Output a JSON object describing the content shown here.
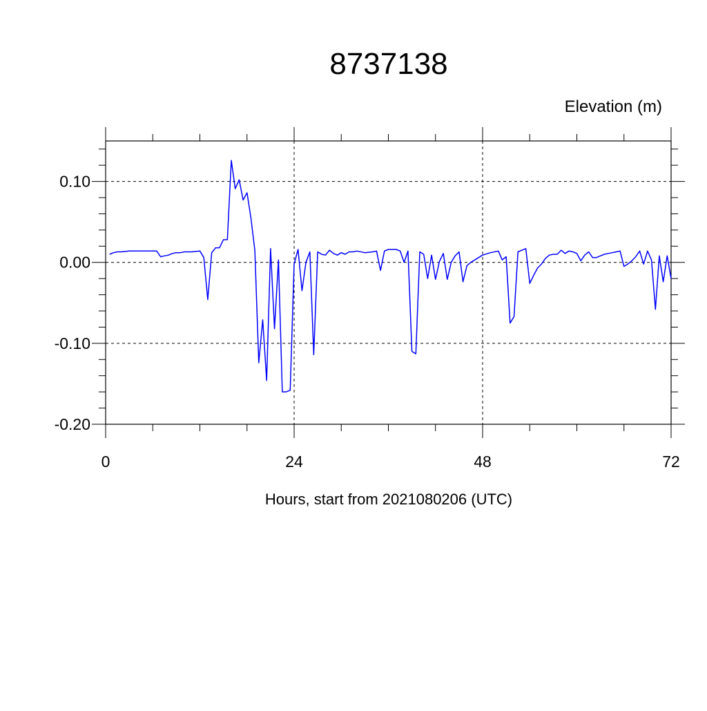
{
  "chart_data": {
    "type": "line",
    "title": "8737138",
    "units_label": "Elevation (m)",
    "xlabel": "Hours, start from 2021080206 (UTC)",
    "ylabel": "",
    "xlim": [
      0,
      72
    ],
    "ylim": [
      -0.2,
      0.15
    ],
    "x_ticks": [
      0,
      24,
      48,
      72
    ],
    "x_tick_labels": [
      "0",
      "24",
      "48",
      "72"
    ],
    "y_ticks": [
      -0.2,
      -0.1,
      0.0,
      0.1
    ],
    "y_tick_labels": [
      "-0.20",
      "-0.10",
      "0.00",
      "0.10"
    ],
    "grid": "dashed at major ticks",
    "series": [
      {
        "color": "#0000ff",
        "x": [
          0.5,
          1.0,
          1.5,
          2.0,
          3.0,
          4.0,
          5.0,
          6.0,
          6.5,
          7.0,
          7.5,
          8.0,
          8.5,
          9.0,
          9.5,
          10.0,
          11.0,
          12.0,
          12.5,
          13.0,
          13.5,
          14.0,
          14.5,
          15.0,
          15.5,
          16.0,
          16.5,
          17.0,
          17.5,
          18.0,
          18.5,
          19.0,
          19.5,
          20.0,
          20.5,
          21.0,
          21.5,
          22.0,
          22.5,
          23.0,
          23.5,
          24.0,
          24.5,
          25.0,
          25.5,
          26.0,
          26.5,
          27.0,
          27.5,
          28.0,
          28.5,
          29.0,
          29.5,
          30.0,
          30.5,
          31.0,
          31.5,
          32.0,
          33.0,
          34.0,
          34.5,
          35.0,
          35.5,
          36.0,
          36.5,
          37.0,
          37.5,
          38.0,
          38.5,
          39.0,
          39.5,
          40.0,
          40.5,
          41.0,
          41.5,
          42.0,
          42.5,
          43.0,
          43.5,
          44.0,
          44.5,
          45.0,
          45.5,
          46.0,
          46.5,
          47.0,
          48.0,
          49.0,
          50.0,
          50.5,
          51.0,
          51.5,
          52.0,
          52.5,
          53.0,
          53.5,
          54.0,
          54.5,
          55.0,
          55.5,
          56.0,
          56.5,
          57.0,
          57.5,
          58.0,
          58.5,
          59.0,
          59.5,
          60.0,
          60.5,
          61.0,
          61.5,
          62.0,
          62.5,
          63.0,
          63.5,
          64.0,
          64.5,
          65.0,
          65.5,
          66.0,
          66.5,
          67.0,
          67.5,
          68.0,
          68.5,
          69.0,
          69.5,
          70.0,
          70.5,
          71.0,
          71.5,
          72.0
        ],
        "y": [
          0.01,
          0.012,
          0.013,
          0.013,
          0.014,
          0.014,
          0.014,
          0.014,
          0.014,
          0.007,
          0.008,
          0.009,
          0.011,
          0.012,
          0.012,
          0.013,
          0.013,
          0.014,
          0.006,
          -0.046,
          0.012,
          0.018,
          0.018,
          0.028,
          0.028,
          0.126,
          0.091,
          0.102,
          0.077,
          0.086,
          0.055,
          0.015,
          -0.124,
          -0.071,
          -0.146,
          0.017,
          -0.082,
          0.003,
          -0.16,
          -0.16,
          -0.158,
          -0.002,
          0.016,
          -0.035,
          0.0,
          0.013,
          -0.114,
          0.013,
          0.01,
          0.009,
          0.015,
          0.011,
          0.009,
          0.012,
          0.01,
          0.013,
          0.013,
          0.014,
          0.012,
          0.013,
          0.014,
          -0.01,
          0.014,
          0.016,
          0.016,
          0.016,
          0.014,
          0.0,
          0.014,
          -0.11,
          -0.113,
          0.013,
          0.01,
          -0.02,
          0.009,
          -0.021,
          0.001,
          0.011,
          -0.021,
          0.0,
          0.008,
          0.013,
          -0.024,
          -0.004,
          0.0,
          0.003,
          0.009,
          0.012,
          0.014,
          0.003,
          0.007,
          -0.075,
          -0.067,
          0.013,
          0.015,
          0.017,
          -0.026,
          -0.016,
          -0.007,
          -0.002,
          0.005,
          0.009,
          0.01,
          0.01,
          0.015,
          0.011,
          0.014,
          0.013,
          0.011,
          0.002,
          0.009,
          0.013,
          0.006,
          0.006,
          0.008,
          0.01,
          0.011,
          0.012,
          0.013,
          0.014,
          -0.005,
          -0.002,
          0.002,
          0.007,
          0.014,
          -0.002,
          0.014,
          0.003,
          -0.058,
          0.008,
          -0.024,
          0.008,
          -0.02
        ]
      }
    ]
  }
}
